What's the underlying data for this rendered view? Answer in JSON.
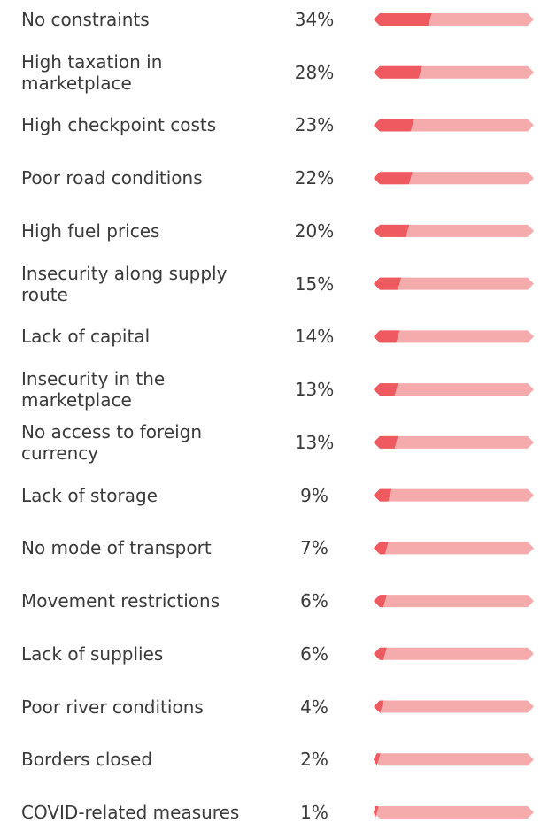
{
  "chart_data": {
    "type": "bar",
    "categories": [
      "No constraints",
      "High taxation in marketplace",
      "High checkpoint costs",
      "Poor road conditions",
      "High fuel prices",
      "Insecurity along supply route",
      "Lack of capital",
      "Insecurity in the marketplace",
      "No access to foreign currency",
      "Lack of storage",
      "No mode of transport",
      "Movement restrictions",
      "Lack of supplies",
      "Poor river conditions",
      "Borders closed",
      "COVID-related measures"
    ],
    "values": [
      34,
      28,
      23,
      22,
      20,
      15,
      14,
      13,
      13,
      9,
      7,
      6,
      6,
      4,
      2,
      1
    ],
    "value_labels": [
      "34%",
      "28%",
      "23%",
      "22%",
      "20%",
      "15%",
      "14%",
      "13%",
      "13%",
      "9%",
      "7%",
      "6%",
      "6%",
      "4%",
      "2%",
      "1%"
    ],
    "xlim": [
      0,
      100
    ],
    "color": "#ee5a5f",
    "track_color": "#f5abab"
  }
}
